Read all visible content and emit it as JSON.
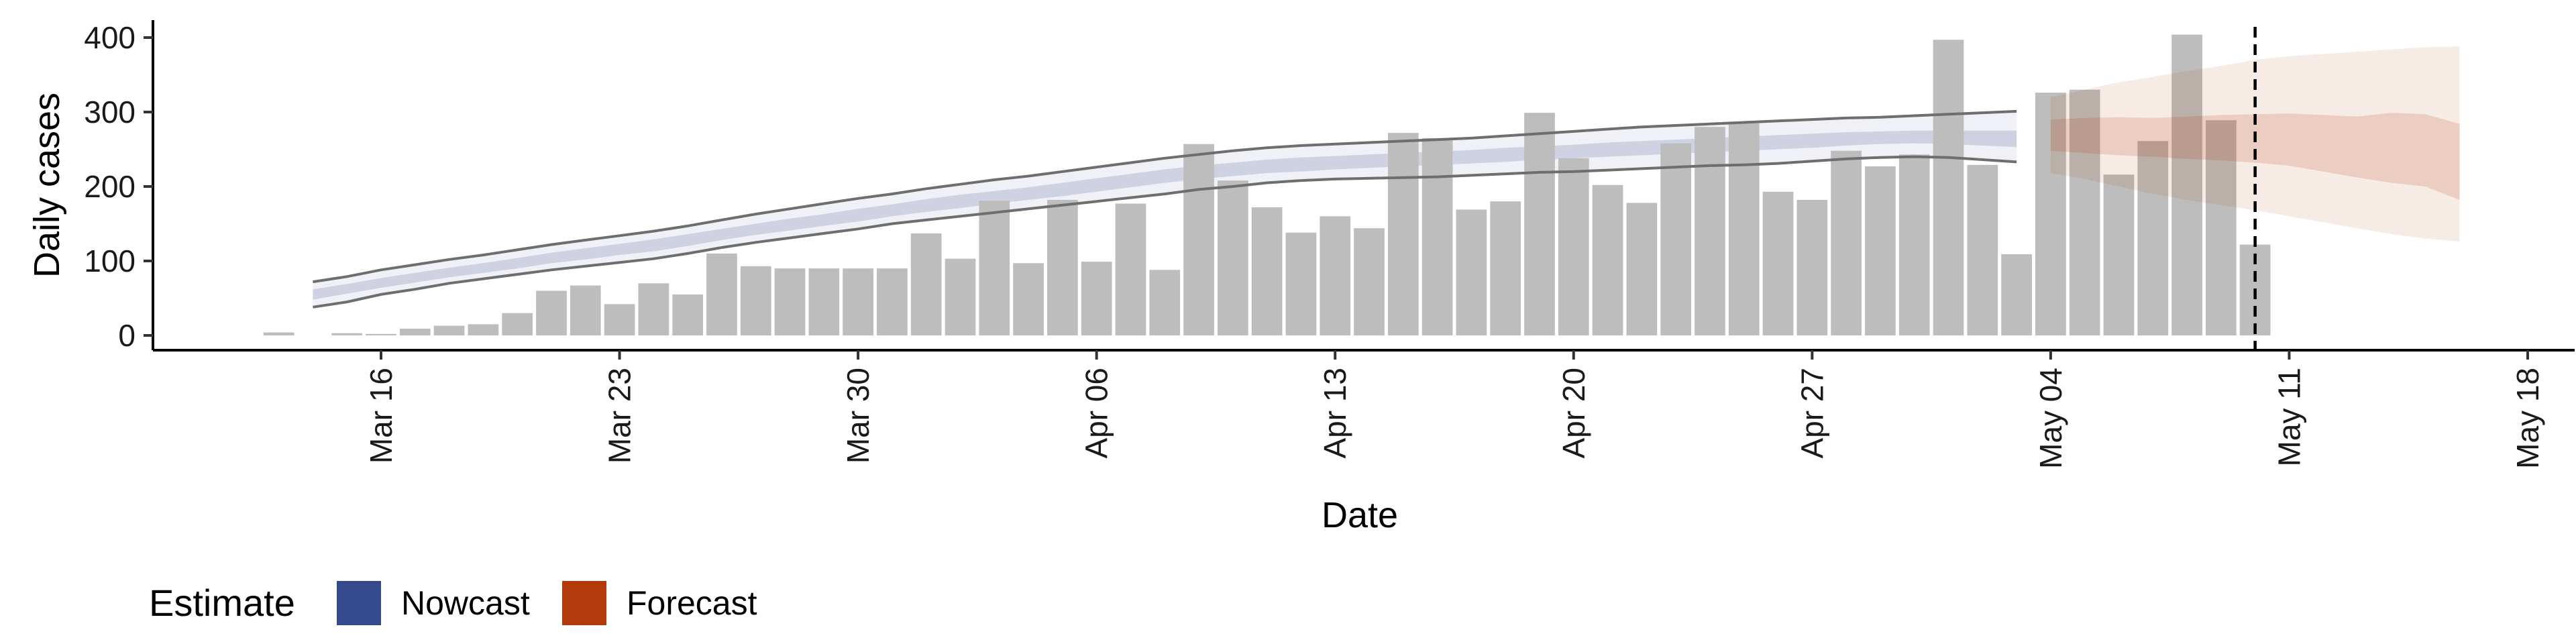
{
  "chart_data": {
    "type": "bar",
    "xlabel": "Date",
    "ylabel": "Daily cases",
    "ylim": [
      -20,
      420
    ],
    "xlim": [
      "2020-03-10",
      "2020-05-18"
    ],
    "x_ticks": [
      "Mar 16",
      "Mar 23",
      "Mar 30",
      "Apr 06",
      "Apr 13",
      "Apr 20",
      "Apr 27",
      "May 04",
      "May 11",
      "May 18"
    ],
    "x_tick_dates": [
      "2020-03-16",
      "2020-03-23",
      "2020-03-30",
      "2020-04-06",
      "2020-04-13",
      "2020-04-20",
      "2020-04-27",
      "2020-05-04",
      "2020-05-11",
      "2020-05-18"
    ],
    "y_ticks": [
      0,
      100,
      200,
      300,
      400
    ],
    "grid": false,
    "reference_line": {
      "date": "2020-05-10",
      "style": "dashed"
    },
    "observed": {
      "dates": [
        "2020-03-13",
        "2020-03-14",
        "2020-03-15",
        "2020-03-16",
        "2020-03-17",
        "2020-03-18",
        "2020-03-19",
        "2020-03-20",
        "2020-03-21",
        "2020-03-22",
        "2020-03-23",
        "2020-03-24",
        "2020-03-25",
        "2020-03-26",
        "2020-03-27",
        "2020-03-28",
        "2020-03-29",
        "2020-03-30",
        "2020-03-31",
        "2020-04-01",
        "2020-04-02",
        "2020-04-03",
        "2020-04-04",
        "2020-04-05",
        "2020-04-06",
        "2020-04-07",
        "2020-04-08",
        "2020-04-09",
        "2020-04-10",
        "2020-04-11",
        "2020-04-12",
        "2020-04-13",
        "2020-04-14",
        "2020-04-15",
        "2020-04-16",
        "2020-04-17",
        "2020-04-18",
        "2020-04-19",
        "2020-04-20",
        "2020-04-21",
        "2020-04-22",
        "2020-04-23",
        "2020-04-24",
        "2020-04-25",
        "2020-04-26",
        "2020-04-27",
        "2020-04-28",
        "2020-04-29",
        "2020-04-30",
        "2020-05-01",
        "2020-05-02",
        "2020-05-03",
        "2020-05-04",
        "2020-05-05",
        "2020-05-06",
        "2020-05-07",
        "2020-05-08",
        "2020-05-09",
        "2020-05-10"
      ],
      "values": [
        4,
        0,
        3,
        2,
        9,
        13,
        15,
        30,
        60,
        67,
        42,
        70,
        55,
        110,
        93,
        90,
        90,
        90,
        90,
        137,
        103,
        181,
        97,
        182,
        99,
        177,
        88,
        257,
        208,
        172,
        138,
        160,
        144,
        272,
        265,
        169,
        180,
        299,
        238,
        202,
        178,
        258,
        280,
        285,
        193,
        182,
        248,
        227,
        243,
        397,
        229,
        109,
        326,
        330,
        216,
        261,
        404,
        289,
        122
      ],
      "color": "#bdbdbd"
    },
    "series": [
      {
        "name": "Nowcast",
        "color": "#354a8c",
        "dates": [
          "2020-03-14",
          "2020-03-15",
          "2020-03-16",
          "2020-03-17",
          "2020-03-18",
          "2020-03-19",
          "2020-03-20",
          "2020-03-21",
          "2020-03-22",
          "2020-03-23",
          "2020-03-24",
          "2020-03-25",
          "2020-03-26",
          "2020-03-27",
          "2020-03-28",
          "2020-03-29",
          "2020-03-30",
          "2020-03-31",
          "2020-04-01",
          "2020-04-02",
          "2020-04-03",
          "2020-04-04",
          "2020-04-05",
          "2020-04-06",
          "2020-04-07",
          "2020-04-08",
          "2020-04-09",
          "2020-04-10",
          "2020-04-11",
          "2020-04-12",
          "2020-04-13",
          "2020-04-14",
          "2020-04-15",
          "2020-04-16",
          "2020-04-17",
          "2020-04-18",
          "2020-04-19",
          "2020-04-20",
          "2020-04-21",
          "2020-04-22",
          "2020-04-23",
          "2020-04-24",
          "2020-04-25",
          "2020-04-26",
          "2020-04-27",
          "2020-04-28",
          "2020-04-29",
          "2020-04-30",
          "2020-05-01",
          "2020-05-02",
          "2020-05-03"
        ],
        "lower90": [
          38,
          45,
          55,
          62,
          70,
          76,
          82,
          88,
          93,
          98,
          103,
          110,
          118,
          125,
          131,
          137,
          143,
          150,
          155,
          160,
          165,
          170,
          175,
          180,
          185,
          190,
          196,
          200,
          205,
          208,
          210,
          211,
          212,
          213,
          215,
          217,
          219,
          220,
          222,
          224,
          226,
          228,
          229,
          231,
          234,
          237,
          239,
          240,
          239,
          236,
          233
        ],
        "lower50": [
          48,
          56,
          64,
          71,
          78,
          84,
          90,
          97,
          102,
          108,
          113,
          120,
          128,
          135,
          141,
          147,
          153,
          160,
          166,
          171,
          177,
          182,
          187,
          193,
          199,
          205,
          210,
          214,
          218,
          220,
          223,
          225,
          227,
          229,
          231,
          233,
          236,
          238,
          240,
          242,
          244,
          246,
          248,
          250,
          252,
          255,
          257,
          258,
          257,
          255,
          253
        ],
        "median": [
          55,
          62,
          70,
          77,
          84,
          90,
          97,
          104,
          110,
          115,
          121,
          128,
          135,
          142,
          149,
          155,
          161,
          168,
          174,
          180,
          185,
          190,
          196,
          202,
          208,
          214,
          219,
          223,
          227,
          229,
          232,
          234,
          236,
          238,
          240,
          242,
          245,
          247,
          249,
          251,
          253,
          255,
          257,
          259,
          261,
          263,
          264,
          265,
          265,
          264,
          263
        ],
        "upper50": [
          62,
          69,
          77,
          84,
          91,
          97,
          104,
          111,
          117,
          123,
          129,
          136,
          143,
          150,
          157,
          163,
          170,
          176,
          183,
          189,
          194,
          199,
          205,
          211,
          217,
          223,
          228,
          232,
          236,
          239,
          241,
          243,
          245,
          247,
          249,
          252,
          254,
          256,
          259,
          261,
          263,
          265,
          267,
          269,
          271,
          273,
          274,
          275,
          275,
          275,
          275
        ],
        "upper90": [
          72,
          79,
          88,
          95,
          102,
          108,
          115,
          122,
          128,
          134,
          140,
          147,
          155,
          163,
          170,
          177,
          184,
          190,
          197,
          203,
          209,
          214,
          220,
          226,
          232,
          238,
          243,
          248,
          252,
          255,
          257,
          259,
          261,
          263,
          265,
          268,
          271,
          274,
          277,
          280,
          282,
          284,
          286,
          288,
          290,
          292,
          293,
          295,
          297,
          299,
          301
        ]
      },
      {
        "name": "Forecast",
        "color": "#b33a0a",
        "dates": [
          "2020-05-04",
          "2020-05-05",
          "2020-05-06",
          "2020-05-07",
          "2020-05-08",
          "2020-05-09",
          "2020-05-10",
          "2020-05-11",
          "2020-05-12",
          "2020-05-13",
          "2020-05-14",
          "2020-05-15",
          "2020-05-16"
        ],
        "lower90": [
          218,
          210,
          200,
          190,
          182,
          175,
          168,
          160,
          152,
          144,
          136,
          130,
          126
        ],
        "lower50": [
          248,
          245,
          242,
          240,
          237,
          235,
          232,
          228,
          220,
          212,
          205,
          200,
          182
        ],
        "median": [
          268,
          269,
          271,
          272,
          273,
          274,
          276,
          275,
          274,
          275,
          276,
          274,
          270
        ],
        "upper50": [
          290,
          292,
          293,
          292,
          294,
          296,
          297,
          298,
          296,
          294,
          299,
          297,
          284
        ],
        "upper90": [
          320,
          330,
          340,
          347,
          355,
          362,
          370,
          375,
          378,
          381,
          384,
          387,
          388
        ]
      }
    ],
    "legend": {
      "title": "Estimate",
      "position": "bottom-left",
      "items": [
        {
          "label": "Nowcast",
          "color": "#354a8c"
        },
        {
          "label": "Forecast",
          "color": "#b33a0a"
        }
      ]
    }
  }
}
